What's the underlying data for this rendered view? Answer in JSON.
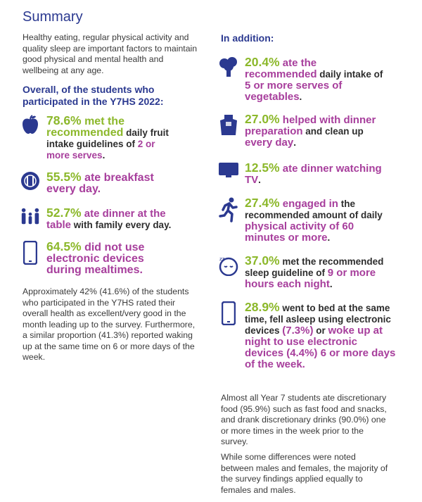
{
  "title": "Summary",
  "intro": "Healthy eating, regular physical activity and quality sleep are important factors to maintain good physical and mental health and wellbeing at any age.",
  "left_heading": "Overall, of the students who participated in the Y7HS 2022:",
  "right_heading": "In addition:",
  "left_items": [
    {
      "icon": "apple-icon",
      "pct": "78.6%",
      "parts": [
        " met the ",
        "recommended",
        " daily fruit intake guidelines of ",
        "2 or more serves",
        "."
      ]
    },
    {
      "icon": "plate-cutlery-icon",
      "pct": "55.5%",
      "parts": [
        " ate breakfast every day."
      ]
    },
    {
      "icon": "family-icon",
      "pct": "52.7%",
      "parts": [
        " ate dinner at the table",
        " with family every day."
      ]
    },
    {
      "icon": "smartphone-icon",
      "pct": "64.5%",
      "parts": [
        " did not use electronic devices during mealtimes."
      ]
    }
  ],
  "left_paragraph": "Approximately 42% (41.6%) of the students who participated in the Y7HS rated their overall health as excellent/very good in the month leading up to the survey. Furthermore, a similar proportion (41.3%) reported waking up at the same time on 6 or more days of the week.",
  "right_items": [
    {
      "icon": "broccoli-icon",
      "pct": "20.4%",
      "parts": [
        " ate the recommended",
        " daily intake of ",
        "5 or more serves of vegetables",
        "."
      ]
    },
    {
      "icon": "apron-icon",
      "pct": "27.0%",
      "parts": [
        " helped with dinner preparation",
        " and clean up ",
        "every day",
        "."
      ]
    },
    {
      "icon": "tv-icon",
      "pct": "12.5%",
      "parts": [
        " ate dinner watching TV",
        "."
      ]
    },
    {
      "icon": "runner-icon",
      "pct": "27.4%",
      "parts": [
        " engaged in",
        " the recommended amount of daily ",
        "physical activity of 60 minutes or more",
        "."
      ]
    },
    {
      "icon": "sleeping-face-icon",
      "pct": "37.0%",
      "parts": [
        " met the recommended sleep guideline of ",
        "9 or more hours each night",
        "."
      ]
    },
    {
      "icon": "smartphone-icon",
      "pct": "28.9%",
      "parts": [
        " went to bed at the same time,",
        " fell asleep using electronic devices ",
        "(7.3%)",
        " or ",
        "woke up at night to use electronic devices ",
        "(4.4%)",
        " 6 or more days of the week."
      ]
    }
  ],
  "right_paragraph_1": "Almost all Year 7 students ate discretionary food (95.9%) such as fast food and snacks, and drank discretionary drinks (90.0%) one or more times in the week prior to the survey.",
  "right_paragraph_2": "While some differences were noted between males and females, the majority of the survey findings applied equally to females and males.",
  "colors": {
    "navy": "#2b3990",
    "green": "#8cb82b",
    "purple": "#a73e9c"
  }
}
